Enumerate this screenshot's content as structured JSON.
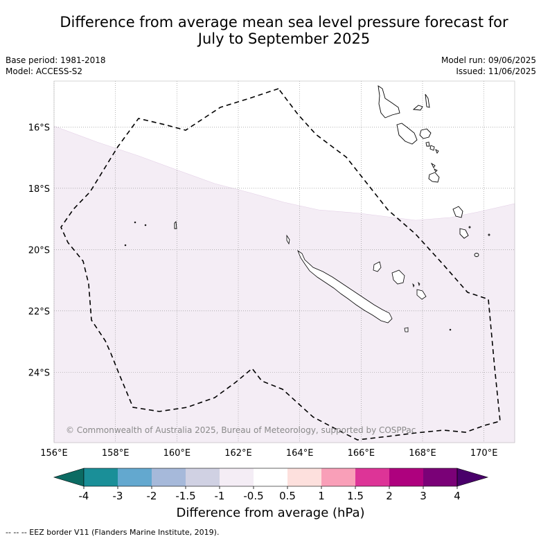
{
  "title_line1": "Difference from average mean sea level pressure forecast for",
  "title_line2": "July to September 2025",
  "meta": {
    "base_period": "Base period: 1981-2018",
    "model": "Model: ACCESS-S2",
    "model_run": "Model run: 09/06/2025",
    "issued": "Issued: 11/06/2025"
  },
  "map": {
    "lon_range": [
      156,
      171
    ],
    "lat_range": [
      -26.3,
      -14.5
    ],
    "lon_ticks": [
      "156°E",
      "158°E",
      "160°E",
      "162°E",
      "164°E",
      "166°E",
      "168°E",
      "170°E"
    ],
    "lat_ticks": [
      "16°S",
      "18°S",
      "20°S",
      "22°S",
      "24°S"
    ],
    "shaded_region_category": "-1 to -0.5",
    "shade_color": "#f4edf5",
    "copyright": "© Commonwealth of Australia 2025, Bureau of Meteorology, supported by COSPPac"
  },
  "colorbar": {
    "title": "Difference from average (hPa)",
    "tick_labels": [
      "-4",
      "-3",
      "-2",
      "-1.5",
      "-1",
      "-0.5",
      "0.5",
      "1",
      "1.5",
      "2",
      "3",
      "4"
    ],
    "colors": [
      "#1a8f98",
      "#63a8cf",
      "#a6b9da",
      "#d0d1e3",
      "#f4edf5",
      "#ffffff",
      "#fde0dd",
      "#f99fb8",
      "#dd3497",
      "#ae017e",
      "#7a0177"
    ],
    "under_color": "#0c6b63",
    "over_color": "#49006a"
  },
  "footer": "--  --  -- EEZ border V11 (Flanders Marine Institute, 2019)."
}
